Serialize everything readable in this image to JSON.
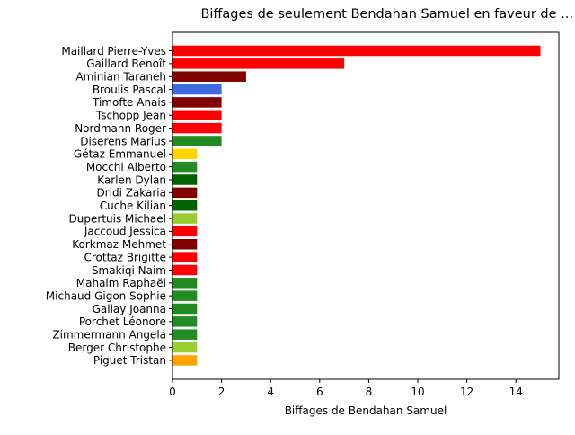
{
  "chart_data": {
    "type": "bar",
    "orientation": "horizontal",
    "title": "Biffages de seulement Bendahan Samuel en faveur de ...",
    "xlabel": "Biffages de Bendahan Samuel",
    "ylabel": "",
    "xlim": [
      0,
      15.75
    ],
    "xticks": [
      0,
      2,
      4,
      6,
      8,
      10,
      12,
      14
    ],
    "grid": false,
    "categories": [
      "Maillard Pierre-Yves",
      "Gaillard Benoît",
      "Aminian Taraneh",
      "Broulis Pascal",
      "Timofte Anais",
      "Tschopp Jean",
      "Nordmann Roger",
      "Diserens Marius",
      "Gétaz Emmanuel",
      "Mocchi Alberto",
      "Karlen Dylan",
      "Dridi Zakaria",
      "Cuche Kilian",
      "Dupertuis Michael",
      "Jaccoud Jessica",
      "Korkmaz Mehmet",
      "Crottaz Brigitte",
      "Smakiqi Naim",
      "Mahaim Raphaël",
      "Michaud Gigon Sophie",
      "Gallay Joanna",
      "Porchet Léonore",
      "Zimmermann Angela",
      "Berger Christophe",
      "Piguet Tristan"
    ],
    "values": [
      15,
      7,
      3,
      2,
      2,
      2,
      2,
      2,
      1,
      1,
      1,
      1,
      1,
      1,
      1,
      1,
      1,
      1,
      1,
      1,
      1,
      1,
      1,
      1,
      1
    ],
    "colors": [
      "#ff0000",
      "#ff0000",
      "#800000",
      "#4169e1",
      "#800000",
      "#ff0000",
      "#ff0000",
      "#228b22",
      "#ffd700",
      "#228b22",
      "#006400",
      "#800000",
      "#006400",
      "#9acd32",
      "#ff0000",
      "#800000",
      "#ff0000",
      "#ff0000",
      "#228b22",
      "#228b22",
      "#228b22",
      "#228b22",
      "#228b22",
      "#9acd32",
      "#ffa500"
    ]
  }
}
